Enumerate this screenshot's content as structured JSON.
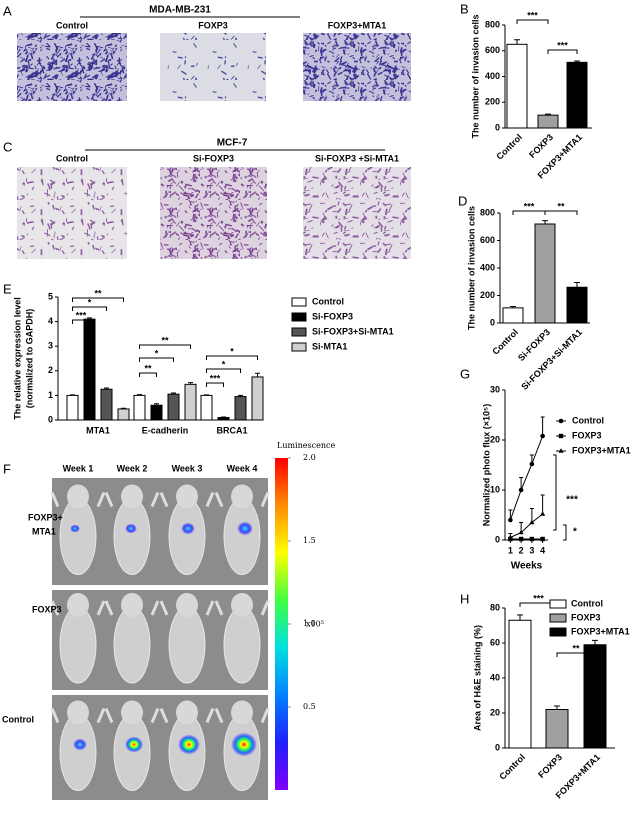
{
  "figure": {
    "panel_labels": [
      "A",
      "B",
      "C",
      "D",
      "E",
      "F",
      "G",
      "H"
    ],
    "A": {
      "title": "MDA-MB-231",
      "labels": [
        "Control",
        "FOXP3",
        "FOXP3+MTA1"
      ]
    },
    "C": {
      "title": "MCF-7",
      "labels": [
        "Control",
        "Si-FOXP3",
        "Si-FOXP3 +Si-MTA1"
      ]
    },
    "F": {
      "columns": [
        "Week 1",
        "Week 2",
        "Week 3",
        "Week 4"
      ],
      "rows": [
        [
          "FOXP3+",
          "MTA1"
        ],
        [
          "FOXP3"
        ],
        [
          "Control"
        ]
      ]
    }
  },
  "chart_data": [
    {
      "type": "bar",
      "ylabel": "The number of invasion cells",
      "categories": [
        "Control",
        "FOXP3",
        "FOXP3+MTA1"
      ],
      "values": [
        650,
        100,
        510
      ],
      "errors": [
        35,
        8,
        10
      ],
      "colors": [
        "#ffffff",
        "#a0a0a0",
        "#000000"
      ],
      "ylim": [
        0,
        800
      ],
      "yticks": [
        0,
        200,
        400,
        600,
        800
      ],
      "annotations": [
        "***",
        "***"
      ]
    },
    {
      "type": "bar",
      "ylabel": "The number of invasion cells",
      "categories": [
        "Control",
        "Si-FOXP3",
        "Si-FOXP3+Si-MTA1"
      ],
      "values": [
        110,
        720,
        260
      ],
      "errors": [
        10,
        25,
        35
      ],
      "colors": [
        "#ffffff",
        "#a0a0a0",
        "#000000"
      ],
      "ylim": [
        0,
        800
      ],
      "yticks": [
        0,
        200,
        400,
        600,
        800
      ],
      "annotations": [
        "***",
        "**"
      ]
    },
    {
      "type": "grouped_bar",
      "ylabel": [
        "The relative expression level",
        "(normalized to GAPDH)"
      ],
      "categories": [
        "MTA1",
        "E-cadherin",
        "BRCA1"
      ],
      "series": [
        {
          "name": "Control",
          "color": "#ffffff",
          "values": [
            1,
            1,
            1
          ],
          "errors": [
            0.02,
            0.03,
            0.02
          ]
        },
        {
          "name": "Si-FOXP3",
          "color": "#000000",
          "values": [
            4.1,
            0.6,
            0.1
          ],
          "errors": [
            0.05,
            0.06,
            0.02
          ]
        },
        {
          "name": "Si-FOXP3+Si-MTA1",
          "color": "#555555",
          "values": [
            1.25,
            1.05,
            0.95
          ],
          "errors": [
            0.05,
            0.05,
            0.05
          ]
        },
        {
          "name": "Si-MTA1",
          "color": "#d0d0d0",
          "values": [
            0.45,
            1.45,
            1.75
          ],
          "errors": [
            0.03,
            0.07,
            0.15
          ]
        }
      ],
      "ylim": [
        0,
        5
      ],
      "yticks": [
        0,
        1,
        2,
        3,
        4,
        5
      ],
      "annotations": [
        "***",
        "*",
        "**",
        "**",
        "*",
        "**",
        "***",
        "*",
        "*"
      ]
    },
    {
      "type": "colorbar",
      "title": "Luminescence",
      "unit_label": "x10⁵",
      "ylim": [
        0,
        2
      ],
      "yticks": [
        {
          "value": 2,
          "label": "2.0"
        },
        {
          "value": 1.5,
          "label": "1.5"
        },
        {
          "value": 1,
          "label": "1.0"
        },
        {
          "value": 0.5,
          "label": "0.5"
        }
      ]
    },
    {
      "type": "line",
      "xlabel": "Weeks",
      "ylabel": "Normalized photo flux (×10⁵)",
      "x": [
        1,
        2,
        3,
        4
      ],
      "xlim": [
        0.5,
        4.5
      ],
      "xticks": [
        1,
        2,
        3,
        4
      ],
      "ylim": [
        0,
        30
      ],
      "yticks": [
        0,
        10,
        20,
        30
      ],
      "series": [
        {
          "name": "Control",
          "marker": "circle",
          "color": "#000000",
          "values": [
            4,
            10,
            15.2,
            20.8
          ],
          "errors": [
            2,
            2.5,
            1.8,
            3.8
          ]
        },
        {
          "name": "FOXP3",
          "marker": "square",
          "color": "#000000",
          "values": [
            0.2,
            0.2,
            0.2,
            0.2
          ],
          "errors": [
            0.3,
            0.3,
            0.3,
            0.3
          ]
        },
        {
          "name": "FOXP3+MTA1",
          "marker": "triangle",
          "color": "#000000",
          "values": [
            0.5,
            1.5,
            3.5,
            5.2
          ],
          "errors": [
            0.8,
            2,
            2.8,
            3.8
          ]
        }
      ],
      "annotations": [
        "***",
        "*"
      ]
    },
    {
      "type": "bar",
      "ylabel": "Area of H&E staining (%)",
      "legend": true,
      "categories": [
        "Control",
        "FOXP3",
        "FOXP3+MTA1"
      ],
      "values": [
        73,
        22,
        59
      ],
      "errors": [
        3,
        2,
        2.5
      ],
      "colors": [
        "#ffffff",
        "#a0a0a0",
        "#000000"
      ],
      "ylim": [
        0,
        80
      ],
      "yticks": [
        0,
        20,
        40,
        60,
        80
      ],
      "annotations": [
        "***",
        "**"
      ]
    }
  ]
}
